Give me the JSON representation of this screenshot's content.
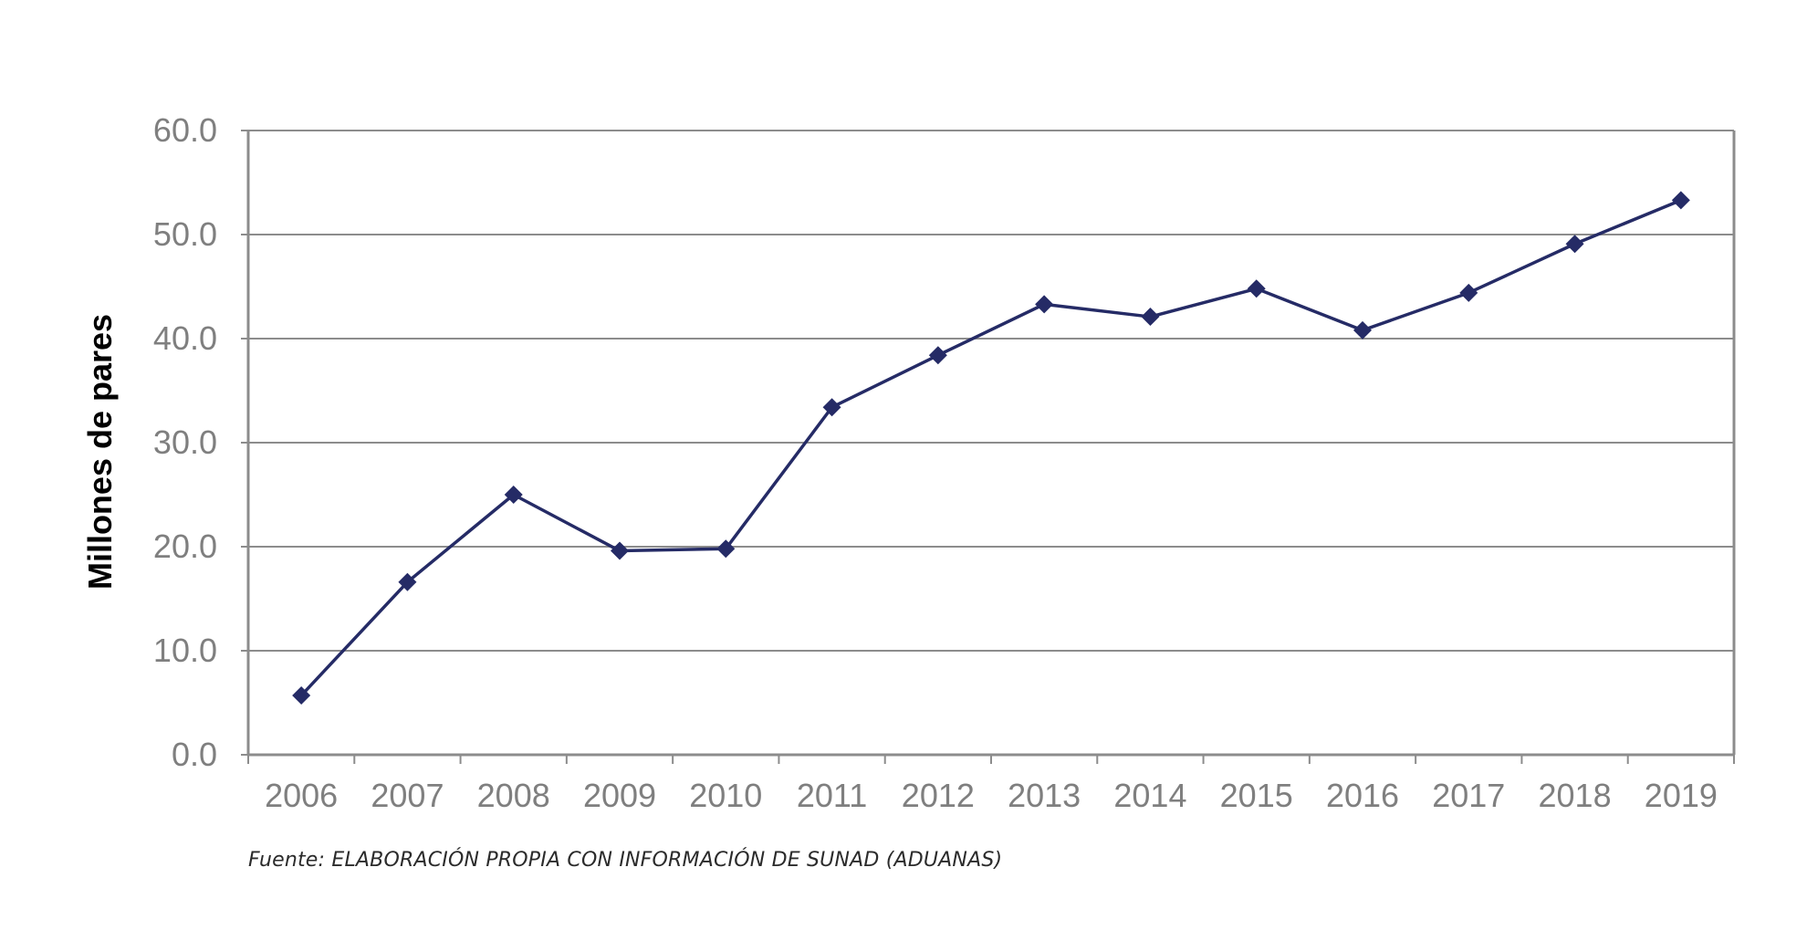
{
  "chart_data": {
    "type": "line",
    "title": "",
    "xlabel": "",
    "ylabel": "Millones de pares",
    "categories": [
      "2006",
      "2007",
      "2008",
      "2009",
      "2010",
      "2011",
      "2012",
      "2013",
      "2014",
      "2015",
      "2016",
      "2017",
      "2018",
      "2019"
    ],
    "series": [
      {
        "values": [
          5.7,
          16.6,
          25.0,
          19.6,
          19.8,
          33.4,
          38.4,
          43.3,
          42.1,
          44.8,
          40.8,
          44.4,
          49.1,
          53.3
        ]
      }
    ],
    "yticks": [
      "0.0",
      "10.0",
      "20.0",
      "30.0",
      "40.0",
      "50.0",
      "60.0"
    ],
    "ylim": [
      0,
      60
    ],
    "grid": true,
    "legend": "none",
    "line_color": "#252b66",
    "marker": "diamond"
  },
  "source_note": "Fuente: ELABORACIÓN PROPIA CON INFORMACIÓN DE SUNAD (ADUANAS)"
}
